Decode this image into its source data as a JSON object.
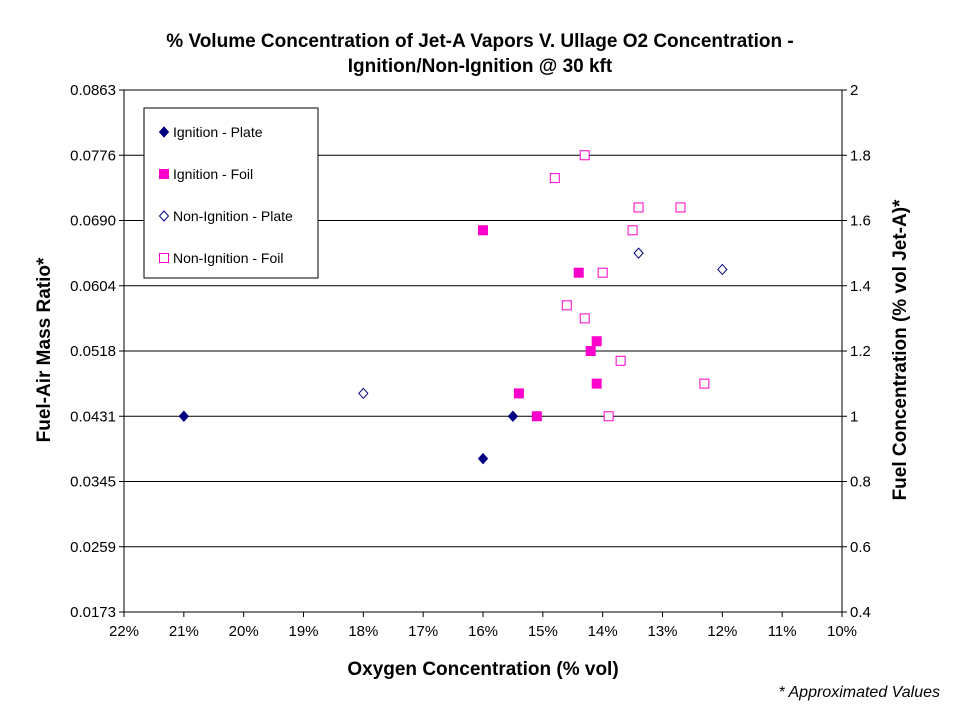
{
  "chart_data": {
    "type": "scatter",
    "title": [
      "% Volume Concentration of Jet-A Vapors V. Ullage O2 Concentration -",
      "Ignition/Non-Ignition @ 30 kft"
    ],
    "xlabel": "Oxygen Concentration (% vol)",
    "ylabel": "Fuel-Air Mass Ratio*",
    "y2label": "Fuel Concentration (% vol Jet-A)*",
    "x_reversed": true,
    "xlim": [
      10,
      22
    ],
    "x_ticks": [
      "22%",
      "21%",
      "20%",
      "19%",
      "18%",
      "17%",
      "16%",
      "15%",
      "14%",
      "13%",
      "12%",
      "11%",
      "10%"
    ],
    "y_ticks_left": [
      "0.0173",
      "0.0259",
      "0.0345",
      "0.0431",
      "0.0518",
      "0.0604",
      "0.0690",
      "0.0776",
      "0.0863"
    ],
    "y2lim": [
      0.4,
      2.0
    ],
    "y2_ticks": [
      "0.4",
      "0.6",
      "0.8",
      "1",
      "1.2",
      "1.4",
      "1.6",
      "1.8",
      "2"
    ],
    "grid": "horizontal",
    "legend_position": "top-left",
    "series": [
      {
        "name": "Ignition - Plate",
        "marker": "diamond-filled",
        "color": "#000080",
        "points": [
          [
            21,
            1.0
          ],
          [
            16,
            0.87
          ],
          [
            15.5,
            1.0
          ]
        ]
      },
      {
        "name": "Ignition - Foil",
        "marker": "square-filled",
        "color": "#FF00CC",
        "points": [
          [
            16,
            1.57
          ],
          [
            14.4,
            1.44
          ],
          [
            14.1,
            1.23
          ],
          [
            14.2,
            1.2
          ],
          [
            14.1,
            1.1
          ],
          [
            15.4,
            1.07
          ],
          [
            15.1,
            1.0
          ]
        ]
      },
      {
        "name": "Non-Ignition - Plate",
        "marker": "diamond-open",
        "color": "#000080",
        "points": [
          [
            18,
            1.07
          ],
          [
            13.4,
            1.5
          ],
          [
            12,
            1.45
          ]
        ]
      },
      {
        "name": "Non-Ignition - Foil",
        "marker": "square-open",
        "color": "#FF00CC",
        "points": [
          [
            14.3,
            1.8
          ],
          [
            14.8,
            1.73
          ],
          [
            13.4,
            1.64
          ],
          [
            12.7,
            1.64
          ],
          [
            13.5,
            1.57
          ],
          [
            14.0,
            1.44
          ],
          [
            14.6,
            1.34
          ],
          [
            14.3,
            1.3
          ],
          [
            13.7,
            1.17
          ],
          [
            12.3,
            1.1
          ],
          [
            13.9,
            1.0
          ]
        ]
      }
    ]
  },
  "footnote": "* Approximated Values"
}
